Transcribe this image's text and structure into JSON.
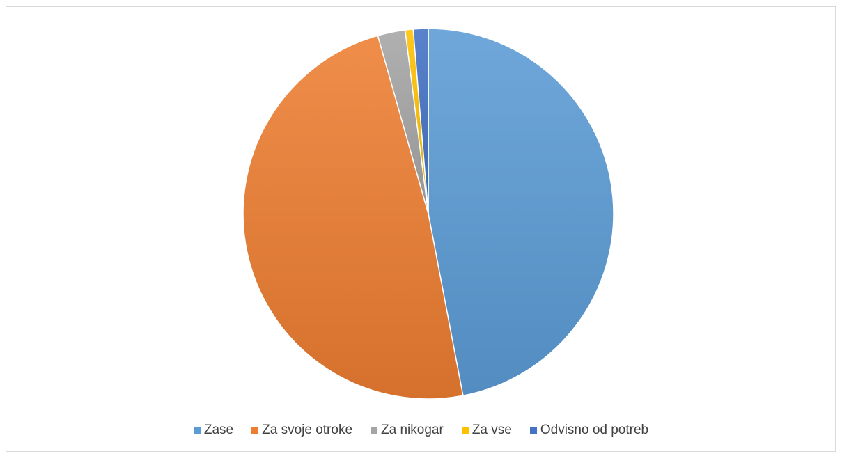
{
  "chart_data": {
    "type": "pie",
    "categories": [
      "Zase",
      "Za svoje otroke",
      "Za nikogar",
      "Za vse",
      "Odvisno od potreb"
    ],
    "values": [
      47.0,
      48.6,
      2.4,
      0.7,
      1.3
    ],
    "colors": [
      "#5b9bd5",
      "#ed7d31",
      "#a5a5a5",
      "#ffc000",
      "#4472c4"
    ],
    "title": "",
    "legend_position": "bottom",
    "start_angle_deg": 0,
    "direction": "clockwise"
  }
}
